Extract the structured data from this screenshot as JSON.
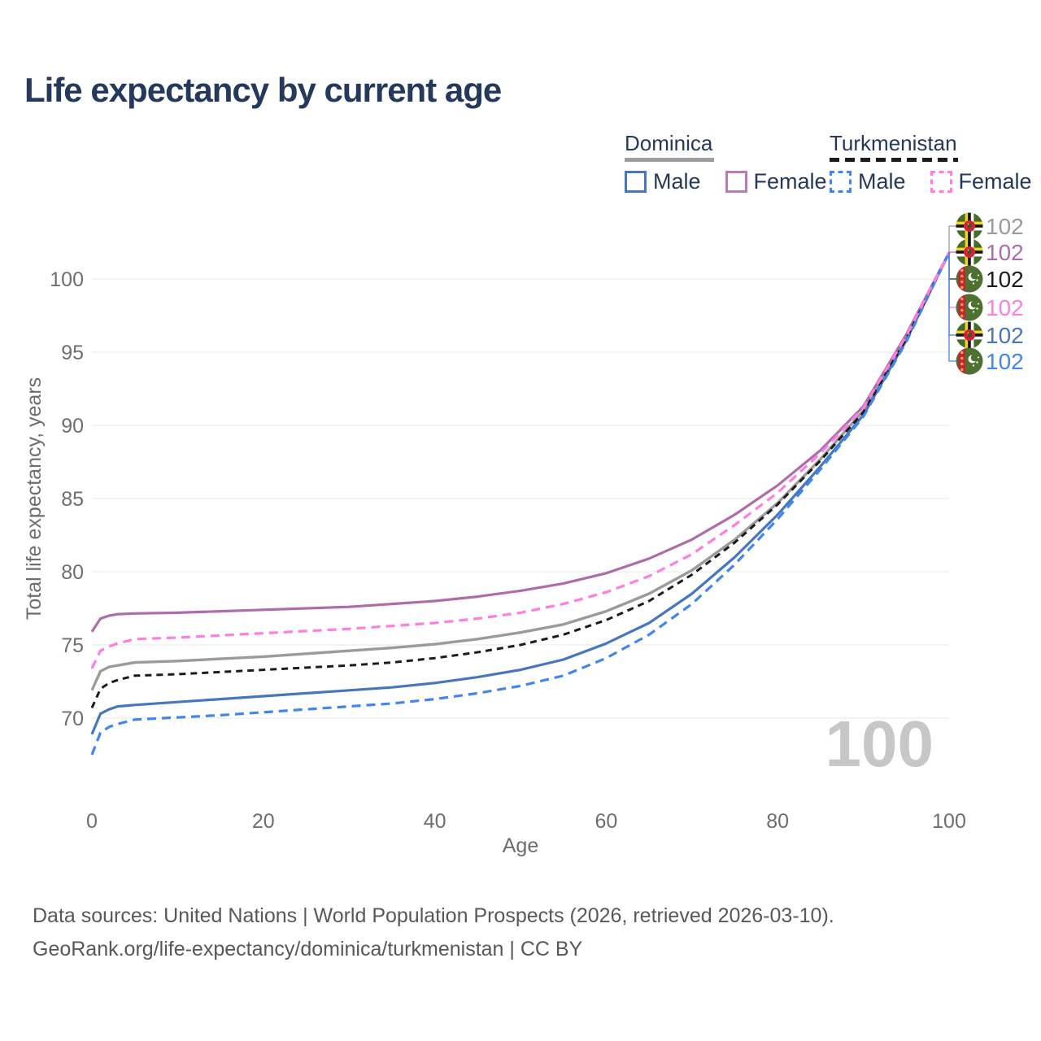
{
  "title": "Life expectancy by current age",
  "watermark": "100",
  "legend": {
    "groups": [
      {
        "label": "Dominica",
        "rule_style": "solid",
        "rule_color": "#9e9e9e",
        "items": [
          {
            "label": "Male",
            "color": "#4677bd",
            "dashed": false
          },
          {
            "label": "Female",
            "color": "#b87cb4",
            "dashed": false
          }
        ]
      },
      {
        "label": "Turkmenistan",
        "rule_style": "dashed",
        "rule_color": "#1c1c1c",
        "items": [
          {
            "label": "Male",
            "color": "#4186f0",
            "dashed": true
          },
          {
            "label": "Female",
            "color": "#ff7de1",
            "dashed": true
          }
        ]
      }
    ]
  },
  "footer": {
    "line1": "Data sources: United Nations | World Population Prospects (2026, retrieved 2026-03-10).",
    "line2": "GeoRank.org/life-expectancy/dominica/turkmenistan | CC BY"
  },
  "chart_data": {
    "type": "line",
    "title": "Life expectancy by current age",
    "xlabel": "Age",
    "ylabel": "Total life expectancy, years",
    "x_ticks": [
      0,
      20,
      40,
      60,
      80,
      100
    ],
    "y_ticks": [
      70,
      75,
      80,
      85,
      90,
      95,
      100
    ],
    "xlim": [
      0,
      100
    ],
    "ylim": [
      66,
      103
    ],
    "grid": "horizontal-only",
    "legend_position": "top-right",
    "age_counter_watermark": "100",
    "end_rows_y": [
      278,
      310,
      343,
      378,
      412,
      444
    ],
    "series": [
      {
        "name": "Dominica — Total",
        "country": "Dominica",
        "sex": "total",
        "color": "#9b9b9b",
        "dash": null,
        "width": 3.4,
        "end_label": "102",
        "end_row": 0,
        "flag": "dominica",
        "points": [
          [
            0,
            71.9
          ],
          [
            1,
            73.2
          ],
          [
            2,
            73.5
          ],
          [
            3,
            73.6
          ],
          [
            5,
            73.8
          ],
          [
            10,
            73.9
          ],
          [
            15,
            74.05
          ],
          [
            20,
            74.2
          ],
          [
            25,
            74.4
          ],
          [
            30,
            74.6
          ],
          [
            35,
            74.8
          ],
          [
            40,
            75.05
          ],
          [
            45,
            75.4
          ],
          [
            50,
            75.85
          ],
          [
            55,
            76.4
          ],
          [
            60,
            77.3
          ],
          [
            65,
            78.5
          ],
          [
            70,
            80.1
          ],
          [
            75,
            82.2
          ],
          [
            80,
            84.7
          ],
          [
            85,
            87.7
          ],
          [
            90,
            91.0
          ],
          [
            95,
            96.0
          ],
          [
            100,
            101.8
          ]
        ]
      },
      {
        "name": "Dominica — Male",
        "country": "Dominica",
        "sex": "male",
        "color": "#4677bd",
        "dash": null,
        "width": 3.2,
        "end_label": "102",
        "end_row": 4,
        "flag": "dominica",
        "points": [
          [
            0,
            68.9
          ],
          [
            1,
            70.3
          ],
          [
            2,
            70.6
          ],
          [
            3,
            70.8
          ],
          [
            5,
            70.9
          ],
          [
            10,
            71.1
          ],
          [
            15,
            71.3
          ],
          [
            20,
            71.5
          ],
          [
            25,
            71.7
          ],
          [
            30,
            71.9
          ],
          [
            35,
            72.1
          ],
          [
            40,
            72.4
          ],
          [
            45,
            72.8
          ],
          [
            50,
            73.3
          ],
          [
            55,
            74.0
          ],
          [
            60,
            75.1
          ],
          [
            65,
            76.5
          ],
          [
            70,
            78.5
          ],
          [
            75,
            81.0
          ],
          [
            80,
            83.9
          ],
          [
            85,
            87.2
          ],
          [
            90,
            90.7
          ],
          [
            95,
            95.8
          ],
          [
            100,
            101.8
          ]
        ]
      },
      {
        "name": "Dominica — Female",
        "country": "Dominica",
        "sex": "female",
        "color": "#af6cab",
        "dash": null,
        "width": 3.2,
        "end_label": "102",
        "end_row": 1,
        "flag": "dominica",
        "points": [
          [
            0,
            75.9
          ],
          [
            1,
            76.8
          ],
          [
            2,
            77.0
          ],
          [
            3,
            77.1
          ],
          [
            5,
            77.15
          ],
          [
            10,
            77.2
          ],
          [
            15,
            77.3
          ],
          [
            20,
            77.4
          ],
          [
            25,
            77.5
          ],
          [
            30,
            77.6
          ],
          [
            35,
            77.8
          ],
          [
            40,
            78.0
          ],
          [
            45,
            78.3
          ],
          [
            50,
            78.7
          ],
          [
            55,
            79.2
          ],
          [
            60,
            79.9
          ],
          [
            65,
            80.9
          ],
          [
            70,
            82.2
          ],
          [
            75,
            83.9
          ],
          [
            80,
            85.9
          ],
          [
            85,
            88.3
          ],
          [
            90,
            91.3
          ],
          [
            95,
            96.2
          ],
          [
            100,
            101.8
          ]
        ]
      },
      {
        "name": "Turkmenistan — Total",
        "country": "Turkmenistan",
        "sex": "total",
        "color": "#1c1c1c",
        "dash": "8 6",
        "width": 3.0,
        "end_label": "102",
        "end_row": 2,
        "flag": "turkmenistan",
        "points": [
          [
            0,
            70.7
          ],
          [
            1,
            72.0
          ],
          [
            2,
            72.4
          ],
          [
            3,
            72.6
          ],
          [
            5,
            72.9
          ],
          [
            10,
            73.0
          ],
          [
            15,
            73.15
          ],
          [
            20,
            73.3
          ],
          [
            25,
            73.45
          ],
          [
            30,
            73.6
          ],
          [
            35,
            73.8
          ],
          [
            40,
            74.1
          ],
          [
            45,
            74.5
          ],
          [
            50,
            75.0
          ],
          [
            55,
            75.7
          ],
          [
            60,
            76.7
          ],
          [
            65,
            78.0
          ],
          [
            70,
            79.8
          ],
          [
            75,
            82.0
          ],
          [
            80,
            84.6
          ],
          [
            85,
            87.6
          ],
          [
            90,
            90.9
          ],
          [
            95,
            95.9
          ],
          [
            100,
            101.8
          ]
        ]
      },
      {
        "name": "Turkmenistan — Male",
        "country": "Turkmenistan",
        "sex": "male",
        "color": "#4186f0",
        "dash": "11 7",
        "width": 3.2,
        "end_label": "102",
        "end_row": 5,
        "flag": "turkmenistan",
        "points": [
          [
            0,
            67.5
          ],
          [
            1,
            69.0
          ],
          [
            2,
            69.4
          ],
          [
            3,
            69.6
          ],
          [
            5,
            69.9
          ],
          [
            10,
            70.05
          ],
          [
            15,
            70.2
          ],
          [
            20,
            70.4
          ],
          [
            25,
            70.6
          ],
          [
            30,
            70.8
          ],
          [
            35,
            71.0
          ],
          [
            40,
            71.3
          ],
          [
            45,
            71.7
          ],
          [
            50,
            72.2
          ],
          [
            55,
            72.9
          ],
          [
            60,
            74.1
          ],
          [
            65,
            75.7
          ],
          [
            70,
            77.8
          ],
          [
            75,
            80.5
          ],
          [
            80,
            83.6
          ],
          [
            85,
            87.0
          ],
          [
            90,
            90.6
          ],
          [
            95,
            95.7
          ],
          [
            100,
            101.8
          ]
        ]
      },
      {
        "name": "Turkmenistan — Female",
        "country": "Turkmenistan",
        "sex": "female",
        "color": "#ff7de1",
        "dash": "11 7",
        "width": 3.2,
        "end_label": "102",
        "end_row": 3,
        "flag": "turkmenistan",
        "points": [
          [
            0,
            73.4
          ],
          [
            1,
            74.6
          ],
          [
            2,
            74.9
          ],
          [
            3,
            75.1
          ],
          [
            5,
            75.4
          ],
          [
            10,
            75.5
          ],
          [
            15,
            75.65
          ],
          [
            20,
            75.8
          ],
          [
            25,
            75.95
          ],
          [
            30,
            76.1
          ],
          [
            35,
            76.3
          ],
          [
            40,
            76.5
          ],
          [
            45,
            76.8
          ],
          [
            50,
            77.2
          ],
          [
            55,
            77.8
          ],
          [
            60,
            78.6
          ],
          [
            65,
            79.7
          ],
          [
            70,
            81.2
          ],
          [
            75,
            83.2
          ],
          [
            80,
            85.4
          ],
          [
            85,
            88.1
          ],
          [
            90,
            91.2
          ],
          [
            95,
            96.1
          ],
          [
            100,
            101.8
          ]
        ]
      }
    ]
  }
}
